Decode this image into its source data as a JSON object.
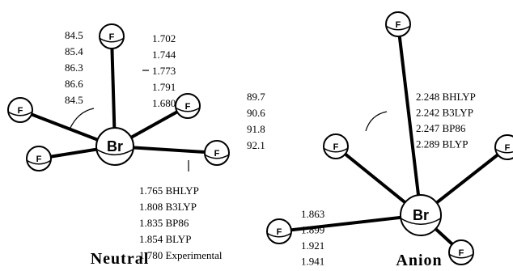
{
  "neutral": {
    "title": "Neutral",
    "atoms": [
      "F",
      "F",
      "F",
      "F",
      "F",
      "Br"
    ],
    "angles": [
      "84.5",
      "85.4",
      "86.3",
      "86.6",
      "84.5"
    ],
    "axial_bonds": [
      "1.702",
      "1.744",
      "1.773",
      "1.791",
      "1.680"
    ],
    "equatorial_bonds": [
      "1.765 BHLYP",
      "1.808 B3LYP",
      "1.835 BP86",
      "1.854 BLYP",
      "1.780 Experimental"
    ]
  },
  "anion": {
    "title": "Anion",
    "atoms": [
      "F",
      "F",
      "F",
      "F",
      "F",
      "Br"
    ],
    "angles": [
      "89.7",
      "90.6",
      "91.8",
      "92.1"
    ],
    "axial_bonds": [
      "2.248 BHLYP",
      "2.242 B3LYP",
      "2.247 BP86",
      "2.289 BLYP"
    ],
    "equatorial_bonds": [
      "1.863",
      "1.899",
      "1.921",
      "1.941"
    ]
  }
}
